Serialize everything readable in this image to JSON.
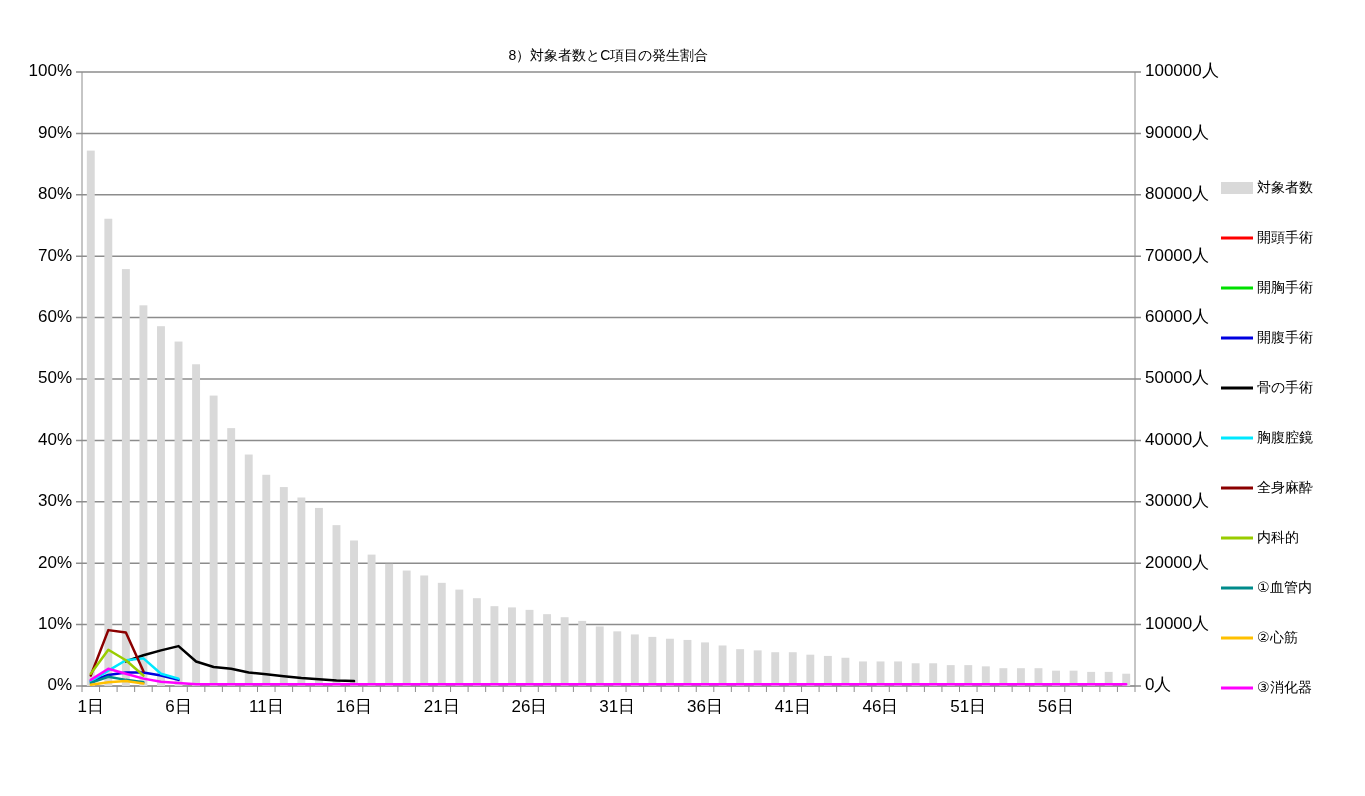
{
  "chart_data": {
    "type": "line",
    "title": "8）対象者数とC項目の発生割合",
    "categories": [
      "1日",
      null,
      null,
      null,
      null,
      "6日",
      null,
      null,
      null,
      null,
      "11日",
      null,
      null,
      null,
      null,
      "16日",
      null,
      null,
      null,
      null,
      "21日",
      null,
      null,
      null,
      null,
      "26日",
      null,
      null,
      null,
      null,
      "31日",
      null,
      null,
      null,
      null,
      "36日",
      null,
      null,
      null,
      null,
      "41日",
      null,
      null,
      null,
      null,
      "46日",
      null,
      null,
      null,
      null,
      "51日",
      null,
      null,
      null,
      null,
      "56日",
      null,
      null,
      null,
      null
    ],
    "ylim": [
      0,
      100
    ],
    "yticks": [
      {
        "value": 0,
        "label": "0%"
      },
      {
        "value": 10,
        "label": "10%"
      },
      {
        "value": 20,
        "label": "20%"
      },
      {
        "value": 30,
        "label": "30%"
      },
      {
        "value": 40,
        "label": "40%"
      },
      {
        "value": 50,
        "label": "50%"
      },
      {
        "value": 60,
        "label": "60%"
      },
      {
        "value": 70,
        "label": "70%"
      },
      {
        "value": 80,
        "label": "80%"
      },
      {
        "value": 90,
        "label": "90%"
      },
      {
        "value": 100,
        "label": "100%"
      }
    ],
    "y2lim": [
      0,
      100000
    ],
    "y2ticks": [
      {
        "value": 0,
        "label": "0人"
      },
      {
        "value": 10000,
        "label": "10000人"
      },
      {
        "value": 20000,
        "label": "20000人"
      },
      {
        "value": 30000,
        "label": "30000人"
      },
      {
        "value": 40000,
        "label": "40000人"
      },
      {
        "value": 50000,
        "label": "50000人"
      },
      {
        "value": 60000,
        "label": "60000人"
      },
      {
        "value": 70000,
        "label": "70000人"
      },
      {
        "value": 80000,
        "label": "80000人"
      },
      {
        "value": 90000,
        "label": "90000人"
      },
      {
        "value": 100000,
        "label": "100000人"
      }
    ],
    "grid": "y",
    "legend": "right",
    "marker": "none",
    "series": [
      {
        "name": "対象者数",
        "type": "bar",
        "axis": "y2",
        "color": "#d9d9d9",
        "values": [
          87200,
          76100,
          67900,
          62000,
          58600,
          56100,
          52400,
          47300,
          42000,
          37700,
          34400,
          32400,
          30700,
          29000,
          26200,
          23700,
          21400,
          19900,
          18800,
          18000,
          16800,
          15700,
          14300,
          13000,
          12800,
          12400,
          11700,
          11200,
          10600,
          9700,
          8900,
          8400,
          8000,
          7700,
          7500,
          7100,
          6600,
          6000,
          5800,
          5500,
          5500,
          5100,
          4900,
          4600,
          4000,
          4000,
          4000,
          3700,
          3700,
          3400,
          3400,
          3200,
          2900,
          2900,
          2900,
          2500,
          2500,
          2300,
          2300,
          2000
        ]
      },
      {
        "name": "開頭手術",
        "color": "#ff0000",
        "values": [
          null,
          null,
          null,
          null,
          null,
          null,
          null,
          null,
          null,
          null,
          null,
          null,
          null,
          null,
          null,
          null,
          null,
          null,
          null,
          null,
          null,
          null,
          null,
          null,
          null,
          null,
          null,
          null,
          null,
          null,
          null,
          null,
          null,
          null,
          null,
          null,
          null,
          null,
          null,
          null,
          null,
          null,
          null,
          null,
          null,
          null,
          null,
          null,
          null,
          null,
          null,
          null,
          null,
          null,
          null,
          null,
          null,
          null,
          null,
          null
        ]
      },
      {
        "name": "開胸手術",
        "color": "#00e000",
        "values": [
          null,
          null,
          null,
          null,
          null,
          null,
          null,
          null,
          null,
          null,
          null,
          null,
          null,
          null,
          null,
          null,
          null,
          null,
          null,
          null,
          null,
          null,
          null,
          null,
          null,
          null,
          null,
          null,
          null,
          null,
          null,
          null,
          null,
          null,
          null,
          null,
          null,
          null,
          null,
          null,
          null,
          null,
          null,
          null,
          null,
          null,
          null,
          null,
          null,
          null,
          null,
          null,
          null,
          null,
          null,
          null,
          null,
          null,
          null,
          null
        ]
      },
      {
        "name": "開腹手術",
        "color": "#0000e0",
        "values": [
          0.8,
          1.8,
          2.2,
          2.2,
          1.7,
          1.0,
          null,
          null,
          null,
          null,
          null,
          null,
          null,
          null,
          null,
          null,
          null,
          null,
          null,
          null,
          null,
          null,
          null,
          null,
          null,
          null,
          null,
          null,
          null,
          null,
          null,
          null,
          null,
          null,
          null,
          null,
          null,
          null,
          null,
          null,
          null,
          null,
          null,
          null,
          null,
          null,
          null,
          null,
          null,
          null,
          null,
          null,
          null,
          null,
          null,
          null,
          null,
          null,
          null,
          null
        ]
      },
      {
        "name": "骨の手術",
        "color": "#000000",
        "values": [
          null,
          null,
          4.0,
          5.0,
          5.8,
          6.5,
          4.0,
          3.1,
          2.8,
          2.2,
          1.9,
          1.6,
          1.3,
          1.1,
          0.9,
          0.8,
          null,
          null,
          null,
          null,
          null,
          null,
          null,
          null,
          null,
          null,
          null,
          null,
          null,
          null,
          null,
          null,
          null,
          null,
          null,
          null,
          null,
          null,
          null,
          null,
          null,
          null,
          null,
          null,
          null,
          null,
          null,
          null,
          null,
          null,
          null,
          null,
          null,
          null,
          null,
          null,
          null,
          null,
          null,
          null
        ]
      },
      {
        "name": "胸腹腔鏡",
        "color": "#00e8ff",
        "values": [
          0.8,
          2.5,
          4.2,
          4.5,
          2.0,
          1.2,
          null,
          null,
          null,
          null,
          null,
          null,
          null,
          null,
          null,
          null,
          null,
          null,
          null,
          null,
          null,
          null,
          null,
          null,
          null,
          null,
          null,
          null,
          null,
          null,
          null,
          null,
          null,
          null,
          null,
          null,
          null,
          null,
          null,
          null,
          null,
          null,
          null,
          null,
          null,
          null,
          null,
          null,
          null,
          null,
          null,
          null,
          null,
          null,
          null,
          null,
          null,
          null,
          null,
          null
        ]
      },
      {
        "name": "全身麻酔",
        "color": "#8b0000",
        "values": [
          1.7,
          9.1,
          8.7,
          2.4,
          null,
          null,
          null,
          null,
          null,
          null,
          null,
          null,
          null,
          null,
          null,
          null,
          null,
          null,
          null,
          null,
          null,
          null,
          null,
          null,
          null,
          null,
          null,
          null,
          null,
          null,
          null,
          null,
          null,
          null,
          null,
          null,
          null,
          null,
          null,
          null,
          null,
          null,
          null,
          null,
          null,
          null,
          null,
          null,
          null,
          null,
          null,
          null,
          null,
          null,
          null,
          null,
          null,
          null,
          null,
          null
        ]
      },
      {
        "name": "内科的",
        "color": "#99cc00",
        "values": [
          2.0,
          5.9,
          4.2,
          1.7,
          null,
          null,
          null,
          null,
          null,
          null,
          null,
          null,
          null,
          null,
          null,
          null,
          null,
          null,
          null,
          null,
          null,
          null,
          null,
          null,
          null,
          null,
          null,
          null,
          null,
          null,
          null,
          null,
          null,
          null,
          null,
          null,
          null,
          null,
          null,
          null,
          null,
          null,
          null,
          null,
          null,
          null,
          null,
          null,
          null,
          null,
          null,
          null,
          null,
          null,
          null,
          null,
          null,
          null,
          null,
          null
        ]
      },
      {
        "name": "①血管内",
        "color": "#008b8b",
        "values": [
          0.5,
          1.5,
          1.0,
          0.6,
          null,
          null,
          null,
          null,
          null,
          null,
          null,
          null,
          null,
          null,
          null,
          null,
          null,
          null,
          null,
          null,
          null,
          null,
          null,
          null,
          null,
          null,
          null,
          null,
          null,
          null,
          null,
          null,
          null,
          null,
          null,
          null,
          null,
          null,
          null,
          null,
          null,
          null,
          null,
          null,
          null,
          null,
          null,
          null,
          null,
          null,
          null,
          null,
          null,
          null,
          null,
          null,
          null,
          null,
          null,
          null
        ]
      },
      {
        "name": "②心筋",
        "color": "#ffc000",
        "values": [
          0.2,
          0.6,
          0.8,
          0.4,
          null,
          null,
          null,
          null,
          null,
          null,
          null,
          null,
          null,
          null,
          null,
          null,
          null,
          null,
          null,
          null,
          null,
          null,
          null,
          null,
          null,
          null,
          null,
          null,
          null,
          null,
          null,
          null,
          null,
          null,
          null,
          null,
          null,
          null,
          null,
          null,
          null,
          null,
          null,
          null,
          null,
          null,
          null,
          null,
          null,
          null,
          null,
          null,
          null,
          null,
          null,
          null,
          null,
          null,
          null,
          null
        ]
      },
      {
        "name": "③消化器",
        "color": "#ff00ff",
        "values": [
          1.0,
          2.8,
          2.0,
          1.2,
          0.7,
          0.5,
          0.3,
          0.3,
          0.3,
          0.3,
          0.3,
          0.3,
          0.3,
          0.3,
          0.3,
          0.3,
          0.3,
          0.3,
          0.3,
          0.3,
          0.3,
          0.3,
          0.3,
          0.3,
          0.3,
          0.3,
          0.3,
          0.3,
          0.3,
          0.3,
          0.3,
          0.3,
          0.3,
          0.3,
          0.3,
          0.3,
          0.3,
          0.3,
          0.3,
          0.3,
          0.3,
          0.3,
          0.3,
          0.3,
          0.3,
          0.3,
          0.3,
          0.3,
          0.3,
          0.3,
          0.3,
          0.3,
          0.3,
          0.3,
          0.3,
          0.3,
          0.3,
          0.3,
          0.3,
          0.3
        ]
      }
    ]
  }
}
